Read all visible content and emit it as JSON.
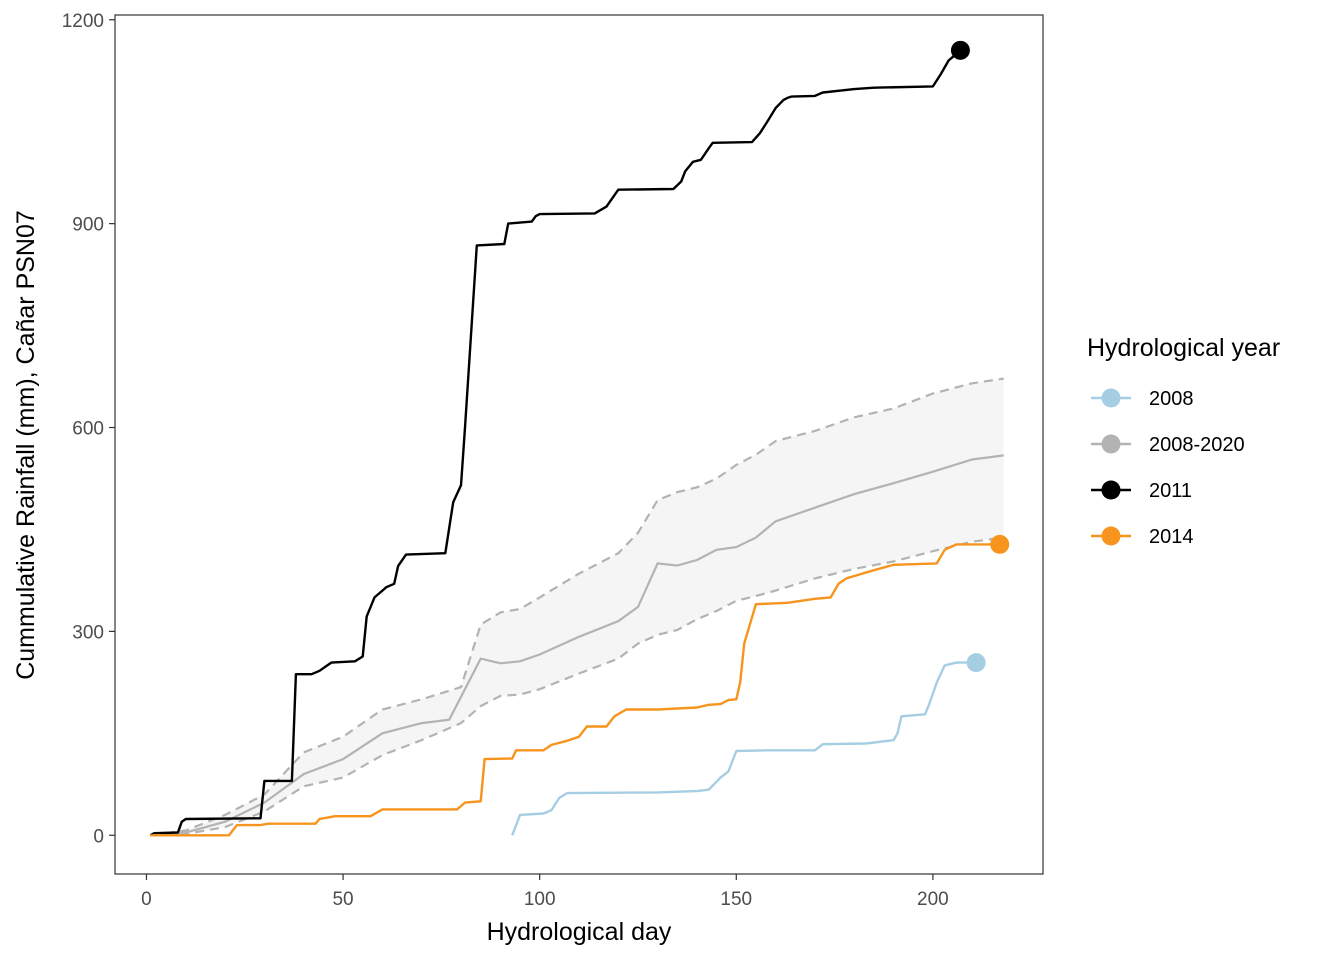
{
  "chart_data": {
    "type": "line",
    "xlabel": "Hydrological day",
    "ylabel": "Cummulative Rainfall (mm), Cañar PSN07",
    "xlim": [
      -8,
      228
    ],
    "ylim": [
      -57,
      1207
    ],
    "xticks": [
      0,
      50,
      100,
      150,
      200
    ],
    "yticks": [
      0,
      300,
      600,
      900,
      1200
    ],
    "grid": false,
    "legend": {
      "title": "Hydrological year",
      "position": "right",
      "entries": [
        {
          "label": "2008",
          "color": "#A6CEE3"
        },
        {
          "label": "2008-2020",
          "color": "#B3B3B3"
        },
        {
          "label": "2011",
          "color": "#000000"
        },
        {
          "label": "2014",
          "color": "#F7941D"
        }
      ]
    },
    "series": [
      {
        "name": "2011",
        "color": "#000000",
        "end_point": true,
        "points": [
          [
            1,
            0
          ],
          [
            2,
            3
          ],
          [
            8,
            4
          ],
          [
            9,
            20
          ],
          [
            10,
            24
          ],
          [
            29,
            25
          ],
          [
            30,
            80
          ],
          [
            37,
            80
          ],
          [
            38,
            237
          ],
          [
            42,
            237
          ],
          [
            44,
            242
          ],
          [
            46,
            250
          ],
          [
            47,
            254
          ],
          [
            53,
            256
          ],
          [
            55,
            263
          ],
          [
            56,
            322
          ],
          [
            58,
            350
          ],
          [
            60,
            360
          ],
          [
            61,
            365
          ],
          [
            63,
            370
          ],
          [
            64,
            396
          ],
          [
            66,
            413
          ],
          [
            76,
            415
          ],
          [
            78,
            490
          ],
          [
            80,
            515
          ],
          [
            81,
            600
          ],
          [
            84,
            868
          ],
          [
            91,
            870
          ],
          [
            92,
            900
          ],
          [
            98,
            903
          ],
          [
            99,
            911
          ],
          [
            100,
            914
          ],
          [
            114,
            915
          ],
          [
            117,
            925
          ],
          [
            120,
            950
          ],
          [
            134,
            951
          ],
          [
            136,
            962
          ],
          [
            137,
            977
          ],
          [
            139,
            991
          ],
          [
            141,
            994
          ],
          [
            143,
            1011
          ],
          [
            144,
            1019
          ],
          [
            154,
            1020
          ],
          [
            156,
            1033
          ],
          [
            158,
            1051
          ],
          [
            160,
            1070
          ],
          [
            162,
            1082
          ],
          [
            163,
            1085
          ],
          [
            164,
            1087
          ],
          [
            170,
            1088
          ],
          [
            172,
            1093
          ],
          [
            180,
            1098
          ],
          [
            185,
            1100
          ],
          [
            200,
            1102
          ],
          [
            202,
            1120
          ],
          [
            204,
            1140
          ],
          [
            205,
            1145
          ],
          [
            207,
            1155
          ]
        ]
      },
      {
        "name": "2014",
        "color": "#F7941D",
        "end_point": true,
        "points": [
          [
            1,
            0
          ],
          [
            21,
            0
          ],
          [
            23,
            15
          ],
          [
            29,
            15
          ],
          [
            31,
            17
          ],
          [
            43,
            17
          ],
          [
            44,
            24
          ],
          [
            48,
            28
          ],
          [
            57,
            28
          ],
          [
            60,
            38
          ],
          [
            79,
            38
          ],
          [
            81,
            48
          ],
          [
            85,
            50
          ],
          [
            86,
            112
          ],
          [
            93,
            113
          ],
          [
            94,
            125
          ],
          [
            101,
            125
          ],
          [
            103,
            133
          ],
          [
            107,
            139
          ],
          [
            110,
            145
          ],
          [
            112,
            160
          ],
          [
            117,
            160
          ],
          [
            119,
            175
          ],
          [
            122,
            185
          ],
          [
            130,
            185
          ],
          [
            140,
            188
          ],
          [
            143,
            192
          ],
          [
            146,
            193
          ],
          [
            148,
            199
          ],
          [
            150,
            200
          ],
          [
            151,
            225
          ],
          [
            152,
            282
          ],
          [
            155,
            340
          ],
          [
            163,
            342
          ],
          [
            170,
            348
          ],
          [
            174,
            350
          ],
          [
            176,
            370
          ],
          [
            178,
            378
          ],
          [
            185,
            390
          ],
          [
            190,
            398
          ],
          [
            201,
            400
          ],
          [
            203,
            420
          ],
          [
            206,
            428
          ],
          [
            217,
            428
          ]
        ]
      },
      {
        "name": "2008",
        "color": "#A6CEE3",
        "end_point": true,
        "points": [
          [
            93,
            0
          ],
          [
            95,
            30
          ],
          [
            101,
            32
          ],
          [
            103,
            37
          ],
          [
            105,
            55
          ],
          [
            107,
            62
          ],
          [
            130,
            63
          ],
          [
            140,
            65
          ],
          [
            143,
            67
          ],
          [
            146,
            85
          ],
          [
            148,
            94
          ],
          [
            150,
            124
          ],
          [
            158,
            125
          ],
          [
            170,
            125
          ],
          [
            172,
            134
          ],
          [
            183,
            135
          ],
          [
            190,
            140
          ],
          [
            191,
            150
          ],
          [
            192,
            175
          ],
          [
            198,
            178
          ],
          [
            199,
            192
          ],
          [
            201,
            225
          ],
          [
            203,
            250
          ],
          [
            206,
            254
          ],
          [
            211,
            254
          ]
        ]
      },
      {
        "name": "2008-2020",
        "color": "#B3B3B3",
        "end_point": false,
        "mean": [
          [
            1,
            0
          ],
          [
            10,
            4
          ],
          [
            20,
            20
          ],
          [
            30,
            48
          ],
          [
            40,
            90
          ],
          [
            50,
            112
          ],
          [
            60,
            150
          ],
          [
            70,
            165
          ],
          [
            77,
            170
          ],
          [
            85,
            260
          ],
          [
            90,
            253
          ],
          [
            95,
            256
          ],
          [
            100,
            266
          ],
          [
            110,
            292
          ],
          [
            120,
            315
          ],
          [
            125,
            336
          ],
          [
            130,
            400
          ],
          [
            135,
            397
          ],
          [
            140,
            405
          ],
          [
            145,
            420
          ],
          [
            150,
            424
          ],
          [
            155,
            438
          ],
          [
            160,
            462
          ],
          [
            170,
            482
          ],
          [
            180,
            502
          ],
          [
            190,
            518
          ],
          [
            200,
            535
          ],
          [
            210,
            553
          ],
          [
            218,
            559
          ]
        ],
        "upper": [
          [
            1,
            0
          ],
          [
            10,
            7
          ],
          [
            20,
            30
          ],
          [
            30,
            60
          ],
          [
            40,
            122
          ],
          [
            50,
            145
          ],
          [
            60,
            185
          ],
          [
            70,
            200
          ],
          [
            80,
            218
          ],
          [
            85,
            310
          ],
          [
            90,
            328
          ],
          [
            95,
            333
          ],
          [
            100,
            350
          ],
          [
            110,
            385
          ],
          [
            120,
            415
          ],
          [
            125,
            445
          ],
          [
            130,
            493
          ],
          [
            135,
            505
          ],
          [
            140,
            512
          ],
          [
            145,
            525
          ],
          [
            150,
            545
          ],
          [
            155,
            560
          ],
          [
            160,
            580
          ],
          [
            170,
            595
          ],
          [
            180,
            615
          ],
          [
            190,
            628
          ],
          [
            200,
            650
          ],
          [
            210,
            665
          ],
          [
            218,
            672
          ]
        ],
        "lower": [
          [
            1,
            0
          ],
          [
            10,
            2
          ],
          [
            20,
            12
          ],
          [
            30,
            35
          ],
          [
            40,
            72
          ],
          [
            50,
            85
          ],
          [
            60,
            118
          ],
          [
            70,
            140
          ],
          [
            80,
            165
          ],
          [
            85,
            190
          ],
          [
            90,
            205
          ],
          [
            95,
            207
          ],
          [
            100,
            215
          ],
          [
            110,
            238
          ],
          [
            120,
            260
          ],
          [
            125,
            282
          ],
          [
            130,
            295
          ],
          [
            135,
            302
          ],
          [
            140,
            318
          ],
          [
            145,
            330
          ],
          [
            150,
            345
          ],
          [
            155,
            352
          ],
          [
            160,
            360
          ],
          [
            170,
            378
          ],
          [
            180,
            392
          ],
          [
            190,
            403
          ],
          [
            200,
            418
          ],
          [
            210,
            432
          ],
          [
            218,
            438
          ]
        ]
      }
    ]
  }
}
